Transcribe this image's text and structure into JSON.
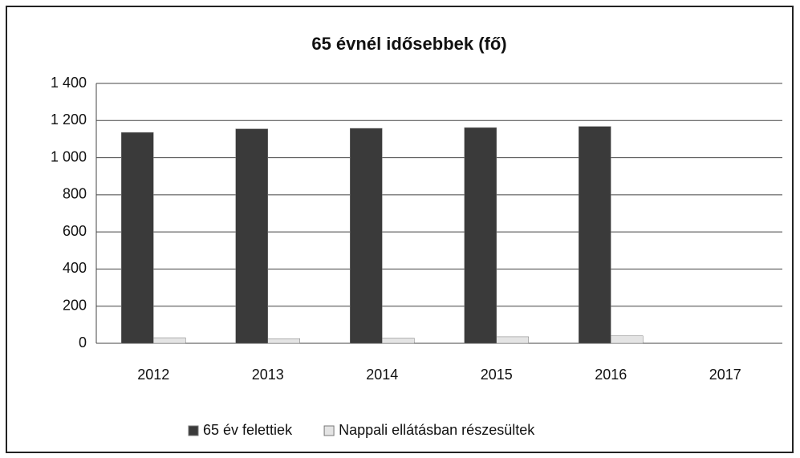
{
  "chart_data": {
    "type": "bar",
    "title": "65 évnél idősebbek (fő)",
    "categories": [
      "2012",
      "2013",
      "2014",
      "2015",
      "2016",
      "2017"
    ],
    "series": [
      {
        "name": "65 év felettiek",
        "color": "#3a3a3a",
        "values": [
          1136,
          1155,
          1158,
          1162,
          1168,
          null
        ]
      },
      {
        "name": "Nappali ellátásban részesültek",
        "color": "#e4e4e4",
        "values": [
          30,
          25,
          28,
          35,
          40,
          null
        ]
      }
    ],
    "ylim": [
      0,
      1400
    ],
    "yticks": [
      0,
      200,
      400,
      600,
      800,
      {
        "value": 1000,
        "label": "1 000"
      },
      {
        "value": 1200,
        "label": "1 200"
      },
      {
        "value": 1400,
        "label": "1 400"
      }
    ],
    "grid": true,
    "legend": "bottom"
  }
}
